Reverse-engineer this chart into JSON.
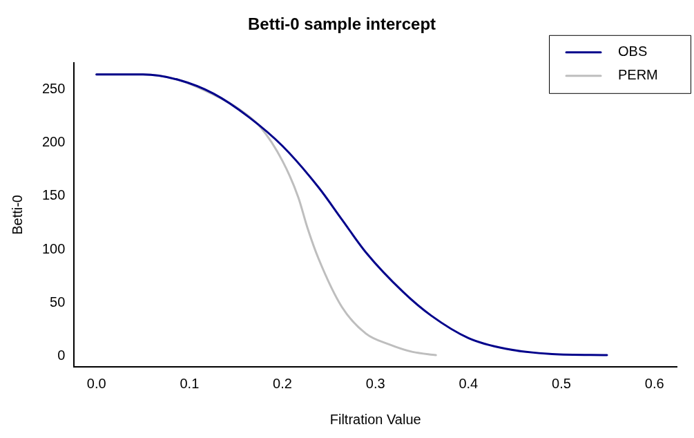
{
  "chart_data": {
    "type": "line",
    "title": "Betti-0 sample intercept",
    "xlabel": "Filtration Value",
    "ylabel": "Betti-0",
    "xlim": [
      -0.024,
      0.624
    ],
    "xticks": [
      {
        "value": 0,
        "label": "0.0"
      },
      0.1,
      0.2,
      0.3,
      0.4,
      0.5,
      0.6
    ],
    "ylim": [
      -10,
      275
    ],
    "yticks": [
      0,
      50,
      100,
      150,
      200,
      250
    ],
    "grid": false,
    "legend": "top right",
    "marker": "none",
    "line_style": "solid",
    "series": [
      {
        "name": "OBS",
        "color": "#00008b",
        "x": [
          0,
          0.05,
          0.088,
          0.126,
          0.164,
          0.2,
          0.239,
          0.264,
          0.29,
          0.33,
          0.36,
          0.4,
          0.44,
          0.49,
          0.549
        ],
        "values": [
          264,
          264,
          259,
          246,
          224,
          197,
          158,
          128,
          97,
          60,
          38,
          17,
          7,
          2,
          1
        ]
      },
      {
        "name": "PERM",
        "color": "#bebebe",
        "x": [
          0,
          0.05,
          0.088,
          0.126,
          0.151,
          0.176,
          0.2,
          0.217,
          0.227,
          0.239,
          0.264,
          0.29,
          0.315,
          0.34,
          0.365
        ],
        "values": [
          264,
          264,
          259,
          245,
          233,
          215,
          183,
          149,
          120,
          91,
          46,
          21,
          11,
          4,
          1
        ]
      }
    ]
  }
}
